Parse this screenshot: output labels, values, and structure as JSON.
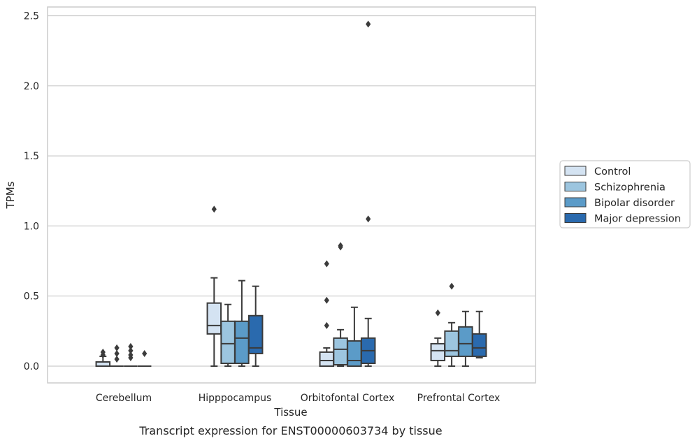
{
  "chart_data": {
    "type": "box",
    "xlabel": "Tissue",
    "ylabel": "TPMs",
    "caption": "Transcript expression for ENST00000603734 by tissue",
    "ylim": [
      -0.12,
      2.57
    ],
    "yticks": [
      0.0,
      0.5,
      1.0,
      1.5,
      2.0,
      2.5
    ],
    "ytick_labels": [
      "0.0",
      "0.5",
      "1.0",
      "1.5",
      "2.0",
      "2.5"
    ],
    "grid": "horizontal",
    "legend_position": "right",
    "categories": [
      "Cerebellum",
      "Hipppocampus",
      "Orbitofontal Cortex",
      "Prefrontal Cortex"
    ],
    "series": [
      {
        "name": "Control",
        "color": "#d4e3f2",
        "boxes": [
          {
            "whislo": 0.0,
            "q1": 0.0,
            "med": 0.0,
            "q3": 0.03,
            "whishi": 0.07,
            "fliers": [
              0.08,
              0.1
            ]
          },
          {
            "whislo": 0.0,
            "q1": 0.23,
            "med": 0.29,
            "q3": 0.45,
            "whishi": 0.63,
            "fliers": [
              1.12
            ]
          },
          {
            "whislo": 0.0,
            "q1": 0.0,
            "med": 0.04,
            "q3": 0.1,
            "whishi": 0.13,
            "fliers": [
              0.29,
              0.47,
              0.73
            ]
          },
          {
            "whislo": 0.0,
            "q1": 0.04,
            "med": 0.11,
            "q3": 0.16,
            "whishi": 0.2,
            "fliers": [
              0.38
            ]
          }
        ]
      },
      {
        "name": "Schizophrenia",
        "color": "#9cc5df",
        "boxes": [
          {
            "whislo": 0.0,
            "q1": 0.0,
            "med": 0.0,
            "q3": 0.0,
            "whishi": 0.0,
            "fliers": [
              0.05,
              0.09,
              0.13
            ]
          },
          {
            "whislo": 0.0,
            "q1": 0.02,
            "med": 0.16,
            "q3": 0.32,
            "whishi": 0.44,
            "fliers": []
          },
          {
            "whislo": 0.0,
            "q1": 0.01,
            "med": 0.12,
            "q3": 0.2,
            "whishi": 0.26,
            "fliers": [
              0.85,
              0.86
            ]
          },
          {
            "whislo": 0.0,
            "q1": 0.07,
            "med": 0.11,
            "q3": 0.25,
            "whishi": 0.31,
            "fliers": [
              0.57
            ]
          }
        ]
      },
      {
        "name": "Bipolar disorder",
        "color": "#5b9bc8",
        "boxes": [
          {
            "whislo": 0.0,
            "q1": 0.0,
            "med": 0.0,
            "q3": 0.0,
            "whishi": 0.0,
            "fliers": [
              0.06,
              0.08,
              0.11,
              0.14
            ]
          },
          {
            "whislo": 0.0,
            "q1": 0.02,
            "med": 0.2,
            "q3": 0.32,
            "whishi": 0.61,
            "fliers": []
          },
          {
            "whislo": 0.0,
            "q1": 0.0,
            "med": 0.04,
            "q3": 0.18,
            "whishi": 0.42,
            "fliers": []
          },
          {
            "whislo": 0.0,
            "q1": 0.07,
            "med": 0.16,
            "q3": 0.28,
            "whishi": 0.39,
            "fliers": []
          }
        ]
      },
      {
        "name": "Major depression",
        "color": "#2a6aae",
        "boxes": [
          {
            "whislo": 0.0,
            "q1": 0.0,
            "med": 0.0,
            "q3": 0.0,
            "whishi": 0.0,
            "fliers": [
              0.09
            ]
          },
          {
            "whislo": 0.0,
            "q1": 0.09,
            "med": 0.13,
            "q3": 0.36,
            "whishi": 0.57,
            "fliers": []
          },
          {
            "whislo": 0.0,
            "q1": 0.02,
            "med": 0.11,
            "q3": 0.2,
            "whishi": 0.34,
            "fliers": [
              1.05,
              2.44
            ]
          },
          {
            "whislo": 0.06,
            "q1": 0.07,
            "med": 0.13,
            "q3": 0.23,
            "whishi": 0.39,
            "fliers": []
          }
        ]
      }
    ]
  }
}
